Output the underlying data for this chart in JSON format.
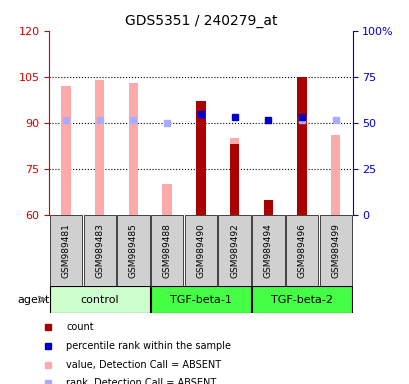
{
  "title": "GDS5351 / 240279_at",
  "samples": [
    "GSM989481",
    "GSM989483",
    "GSM989485",
    "GSM989488",
    "GSM989490",
    "GSM989492",
    "GSM989494",
    "GSM989496",
    "GSM989499"
  ],
  "ylim_left": [
    60,
    120
  ],
  "ylim_right": [
    0,
    100
  ],
  "yticks_left": [
    60,
    75,
    90,
    105,
    120
  ],
  "yticks_right": [
    0,
    25,
    50,
    75,
    100
  ],
  "ytick_labels_right": [
    "0",
    "25",
    "50",
    "75",
    "100%"
  ],
  "absent_value_bars": {
    "values": [
      102,
      104,
      103,
      70,
      null,
      85,
      null,
      null,
      86
    ],
    "color": "#ffaaaa"
  },
  "absent_rank_markers": {
    "values": [
      91,
      91,
      91,
      90,
      null,
      null,
      null,
      91,
      91
    ],
    "color": "#aaaaff"
  },
  "present_value_bars": {
    "values": [
      null,
      null,
      null,
      null,
      97,
      83,
      65,
      105,
      null
    ],
    "color": "#aa0000"
  },
  "present_rank_markers": {
    "values": [
      null,
      null,
      null,
      null,
      93,
      92,
      91,
      92,
      null
    ],
    "color": "#0000cc"
  },
  "group_light_color": "#ccffcc",
  "group_bright_color": "#44ff44",
  "tick_label_color_left": "#cc0000",
  "tick_label_color_right": "#0000cc",
  "bg_color": "#d0d0d0",
  "group_defs": [
    {
      "name": "control",
      "start": 0,
      "end": 2,
      "color": "#ccffcc"
    },
    {
      "name": "TGF-beta-1",
      "start": 3,
      "end": 5,
      "color": "#44ff44"
    },
    {
      "name": "TGF-beta-2",
      "start": 6,
      "end": 8,
      "color": "#44ff44"
    }
  ],
  "legend_items": [
    {
      "color": "#aa0000",
      "label": "count"
    },
    {
      "color": "#0000cc",
      "label": "percentile rank within the sample"
    },
    {
      "color": "#ffaaaa",
      "label": "value, Detection Call = ABSENT"
    },
    {
      "color": "#aaaaff",
      "label": "rank, Detection Call = ABSENT"
    }
  ]
}
